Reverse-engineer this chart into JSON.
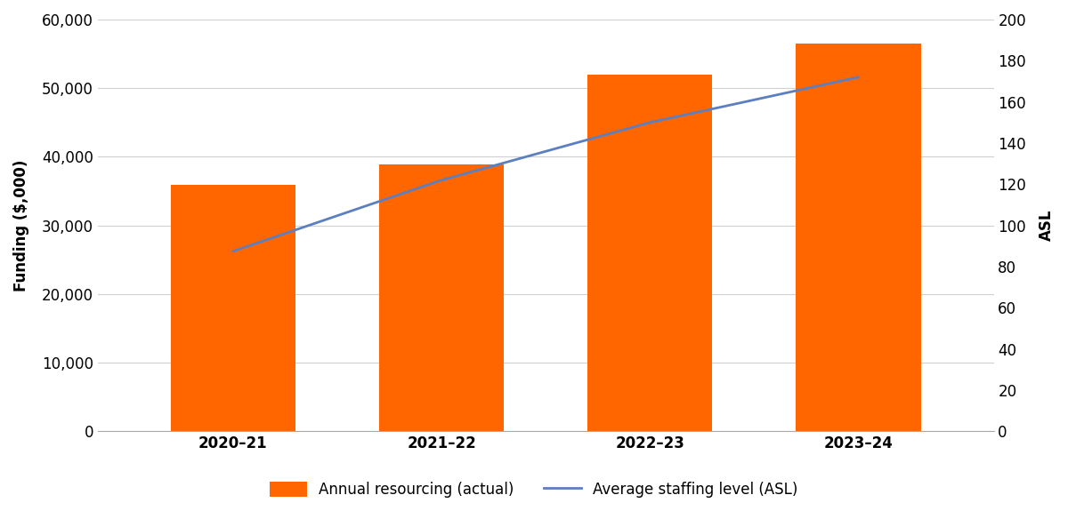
{
  "categories": [
    "2020–21",
    "2021–22",
    "2022–23",
    "2023–24"
  ],
  "bar_values": [
    35888,
    38921,
    51936,
    56522
  ],
  "asl_values": [
    87.5,
    122,
    150,
    172
  ],
  "bar_color": "#FF6600",
  "line_color": "#5B7FBF",
  "ylabel_left": "Funding ($,000)",
  "ylabel_right": "ASL",
  "ylim_left": [
    0,
    60000
  ],
  "ylim_right": [
    0,
    200
  ],
  "yticks_left": [
    0,
    10000,
    20000,
    30000,
    40000,
    50000,
    60000
  ],
  "yticks_right": [
    0,
    20,
    40,
    60,
    80,
    100,
    120,
    140,
    160,
    180,
    200
  ],
  "legend_bar": "Annual resourcing (actual)",
  "legend_line": "Average staffing level (ASL)",
  "bar_width": 0.6,
  "background_color": "#ffffff",
  "grid_color": "#d0d0d0",
  "axis_fontsize": 12,
  "tick_fontsize": 12,
  "legend_fontsize": 12,
  "xlim_left": -0.65,
  "xlim_right": 3.65
}
